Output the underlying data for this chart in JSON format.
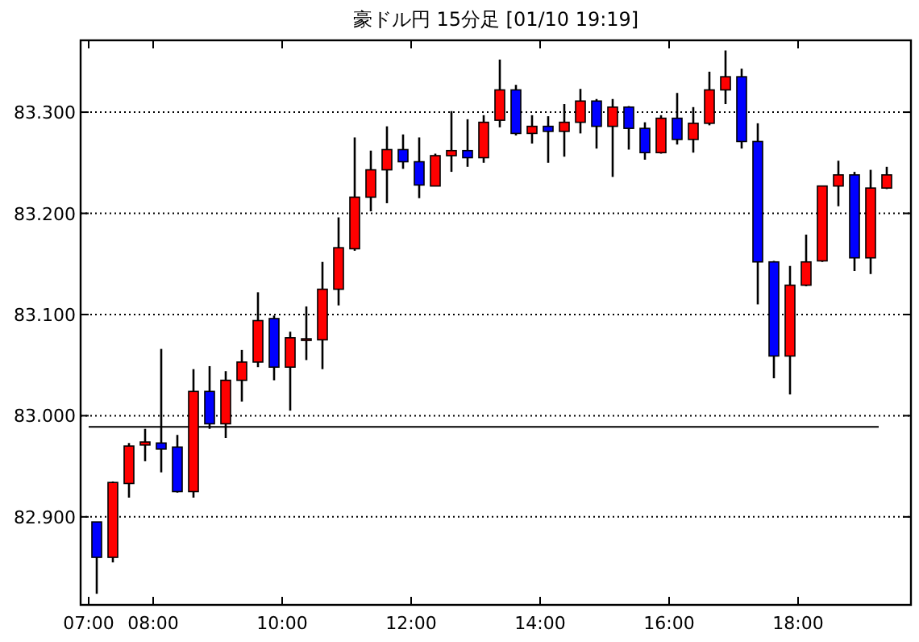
{
  "chart_data": {
    "type": "candlestick",
    "title": "豪ドル円 15分足 [01/10 19:19]",
    "x": [
      7.125,
      7.375,
      7.625,
      7.875,
      8.125,
      8.375,
      8.625,
      8.875,
      9.125,
      9.375,
      9.625,
      9.875,
      10.125,
      10.375,
      10.625,
      10.875,
      11.125,
      11.375,
      11.625,
      11.875,
      12.125,
      12.375,
      12.625,
      12.875,
      13.125,
      13.375,
      13.625,
      13.875,
      14.125,
      14.375,
      14.625,
      14.875,
      15.125,
      15.375,
      15.625,
      15.875,
      16.125,
      16.375,
      16.625,
      16.875,
      17.125,
      17.375,
      17.625,
      17.875,
      18.125,
      18.375,
      18.625,
      18.875,
      19.125,
      19.375
    ],
    "ohlc": [
      [
        82.895,
        82.895,
        82.824,
        82.86
      ],
      [
        82.86,
        82.935,
        82.855,
        82.934
      ],
      [
        82.933,
        82.973,
        82.919,
        82.97
      ],
      [
        82.971,
        82.987,
        82.955,
        82.974
      ],
      [
        82.973,
        83.066,
        82.944,
        82.967
      ],
      [
        82.969,
        82.981,
        82.924,
        82.925
      ],
      [
        82.925,
        83.046,
        82.919,
        83.024
      ],
      [
        83.024,
        83.049,
        82.987,
        82.992
      ],
      [
        82.992,
        83.044,
        82.978,
        83.035
      ],
      [
        83.035,
        83.065,
        83.014,
        83.053
      ],
      [
        83.053,
        83.122,
        83.048,
        83.094
      ],
      [
        83.096,
        83.099,
        83.035,
        83.048
      ],
      [
        83.048,
        83.083,
        83.005,
        83.077
      ],
      [
        83.075,
        83.108,
        83.055,
        83.076
      ],
      [
        83.075,
        83.152,
        83.046,
        83.125
      ],
      [
        83.125,
        83.196,
        83.109,
        83.166
      ],
      [
        83.165,
        83.275,
        83.163,
        83.216
      ],
      [
        83.216,
        83.262,
        83.202,
        83.243
      ],
      [
        83.243,
        83.286,
        83.21,
        83.263
      ],
      [
        83.263,
        83.278,
        83.244,
        83.251
      ],
      [
        83.251,
        83.275,
        83.215,
        83.228
      ],
      [
        83.227,
        83.259,
        83.227,
        83.257
      ],
      [
        83.257,
        83.301,
        83.241,
        83.262
      ],
      [
        83.262,
        83.293,
        83.246,
        83.255
      ],
      [
        83.255,
        83.297,
        83.25,
        83.29
      ],
      [
        83.292,
        83.352,
        83.285,
        83.322
      ],
      [
        83.322,
        83.327,
        83.277,
        83.279
      ],
      [
        83.279,
        83.297,
        83.269,
        83.286
      ],
      [
        83.286,
        83.296,
        83.25,
        83.281
      ],
      [
        83.281,
        83.308,
        83.256,
        83.29
      ],
      [
        83.29,
        83.323,
        83.279,
        83.311
      ],
      [
        83.311,
        83.313,
        83.264,
        83.286
      ],
      [
        83.286,
        83.313,
        83.236,
        83.305
      ],
      [
        83.305,
        83.306,
        83.263,
        83.284
      ],
      [
        83.284,
        83.29,
        83.253,
        83.26
      ],
      [
        83.26,
        83.297,
        83.259,
        83.294
      ],
      [
        83.294,
        83.319,
        83.268,
        83.273
      ],
      [
        83.273,
        83.305,
        83.26,
        83.289
      ],
      [
        83.289,
        83.34,
        83.287,
        83.322
      ],
      [
        83.322,
        83.361,
        83.308,
        83.335
      ],
      [
        83.335,
        83.343,
        83.264,
        83.271
      ],
      [
        83.271,
        83.289,
        83.11,
        83.152
      ],
      [
        83.152,
        83.153,
        83.037,
        83.059
      ],
      [
        83.059,
        83.148,
        83.021,
        83.129
      ],
      [
        83.129,
        83.179,
        83.128,
        83.152
      ],
      [
        83.153,
        83.227,
        83.152,
        83.227
      ],
      [
        83.227,
        83.252,
        83.207,
        83.238
      ],
      [
        83.238,
        83.241,
        83.143,
        83.156
      ],
      [
        83.156,
        83.243,
        83.14,
        83.225
      ],
      [
        83.225,
        83.246,
        83.224,
        83.238
      ]
    ],
    "colors": [
      "#0000ff",
      "#ff0000",
      "#ff0000",
      "#ff0000",
      "#0000ff",
      "#0000ff",
      "#ff0000",
      "#0000ff",
      "#ff0000",
      "#ff0000",
      "#ff0000",
      "#0000ff",
      "#ff0000",
      "#ff0000",
      "#ff0000",
      "#ff0000",
      "#ff0000",
      "#ff0000",
      "#ff0000",
      "#0000ff",
      "#0000ff",
      "#ff0000",
      "#ff0000",
      "#0000ff",
      "#ff0000",
      "#ff0000",
      "#0000ff",
      "#ff0000",
      "#0000ff",
      "#ff0000",
      "#ff0000",
      "#0000ff",
      "#ff0000",
      "#0000ff",
      "#0000ff",
      "#ff0000",
      "#0000ff",
      "#ff0000",
      "#ff0000",
      "#ff0000",
      "#0000ff",
      "#0000ff",
      "#0000ff",
      "#ff0000",
      "#ff0000",
      "#ff0000",
      "#ff0000",
      "#0000ff",
      "#ff0000",
      "#ff0000"
    ],
    "xlim": [
      6.875,
      19.75
    ],
    "xticks": [
      {
        "value": 7,
        "label": "07:00"
      },
      {
        "value": 8,
        "label": "08:00"
      },
      {
        "value": 10,
        "label": "10:00"
      },
      {
        "value": 12,
        "label": "12:00"
      },
      {
        "value": 14,
        "label": "14:00"
      },
      {
        "value": 16,
        "label": "16:00"
      },
      {
        "value": 18,
        "label": "18:00"
      }
    ],
    "ylim": [
      82.813,
      83.371
    ],
    "yticks": [
      {
        "value": 82.9,
        "label": "82.900"
      },
      {
        "value": 83.0,
        "label": "83.000"
      },
      {
        "value": 83.1,
        "label": "83.100"
      },
      {
        "value": 83.2,
        "label": "83.200"
      },
      {
        "value": 83.3,
        "label": "83.300"
      }
    ],
    "ref_lines": [
      {
        "axis": "y",
        "value": 82.989,
        "color": "#000000",
        "line_style": "solid"
      }
    ],
    "grid": "y"
  }
}
